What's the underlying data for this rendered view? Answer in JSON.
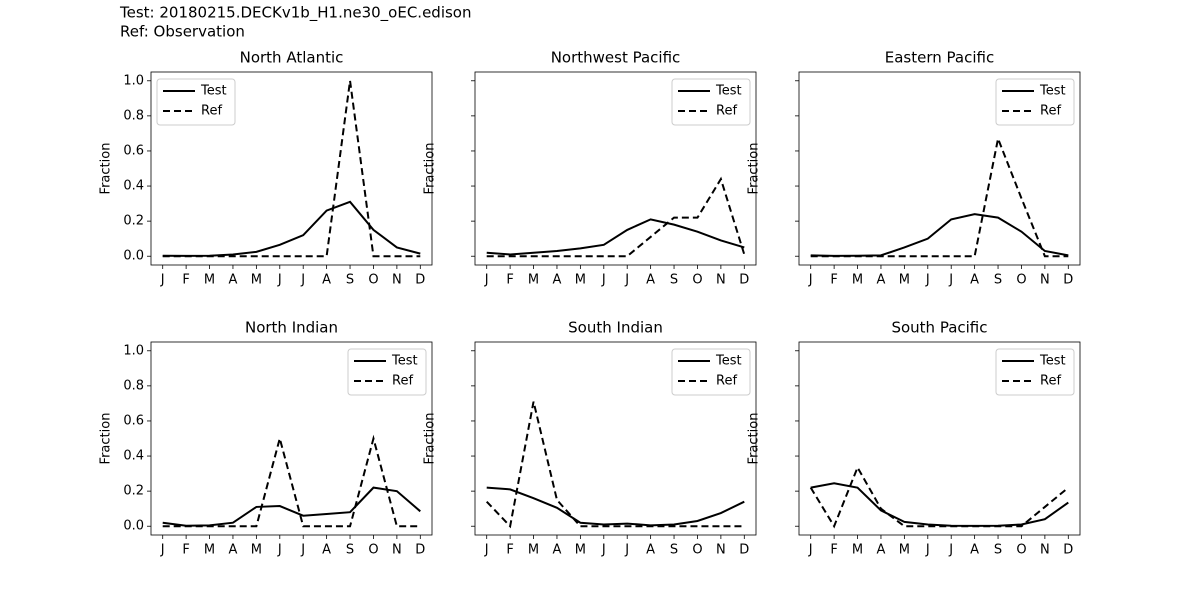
{
  "header": {
    "test": "Test: 20180215.DECKv1b_H1.ne30_oEC.edison",
    "ref": "Ref: Observation"
  },
  "chart_data": [
    {
      "type": "line",
      "title": "North Atlantic",
      "ylabel": "Fraction",
      "legend": "upper left",
      "categories": [
        "J",
        "F",
        "M",
        "A",
        "M",
        "J",
        "J",
        "A",
        "S",
        "O",
        "N",
        "D"
      ],
      "ylim": [
        -0.05,
        1.05
      ],
      "yticks": [
        {
          "value": 0,
          "label": "0.0"
        },
        {
          "value": 0.2,
          "label": "0.2"
        },
        {
          "value": 0.4,
          "label": "0.4"
        },
        {
          "value": 0.6,
          "label": "0.6"
        },
        {
          "value": 0.8,
          "label": "0.8"
        },
        {
          "value": 1,
          "label": "1.0"
        }
      ],
      "series": [
        {
          "name": "Test",
          "color": "#000000",
          "linestyle": "solid",
          "values": [
            0.003,
            0.002,
            0.003,
            0.01,
            0.025,
            0.065,
            0.12,
            0.26,
            0.31,
            0.15,
            0.05,
            0.015
          ]
        },
        {
          "name": "Ref",
          "color": "#000000",
          "linestyle": "dashed",
          "values": [
            0,
            0,
            0,
            0,
            0,
            0,
            0,
            0,
            1.0,
            0,
            0,
            0
          ]
        }
      ]
    },
    {
      "type": "line",
      "title": "Northwest Pacific",
      "ylabel": "Fraction",
      "legend": "upper right",
      "categories": [
        "J",
        "F",
        "M",
        "A",
        "M",
        "J",
        "J",
        "A",
        "S",
        "O",
        "N",
        "D"
      ],
      "ylim": [
        -0.05,
        1.05
      ],
      "yticks": [
        0,
        0.2,
        0.4,
        0.6,
        0.8,
        1
      ],
      "series": [
        {
          "name": "Test",
          "color": "#000000",
          "linestyle": "solid",
          "values": [
            0.02,
            0.01,
            0.02,
            0.03,
            0.045,
            0.065,
            0.15,
            0.21,
            0.18,
            0.14,
            0.09,
            0.05
          ]
        },
        {
          "name": "Ref",
          "color": "#000000",
          "linestyle": "dashed",
          "values": [
            0,
            0,
            0,
            0,
            0,
            0,
            0,
            0.11,
            0.22,
            0.22,
            0.44,
            0.01
          ]
        }
      ]
    },
    {
      "type": "line",
      "title": "Eastern Pacific",
      "ylabel": "Fraction",
      "legend": "upper right",
      "categories": [
        "J",
        "F",
        "M",
        "A",
        "M",
        "J",
        "J",
        "A",
        "S",
        "O",
        "N",
        "D"
      ],
      "ylim": [
        -0.05,
        1.05
      ],
      "yticks": [
        0,
        0.2,
        0.4,
        0.6,
        0.8,
        1
      ],
      "series": [
        {
          "name": "Test",
          "color": "#000000",
          "linestyle": "solid",
          "values": [
            0.005,
            0.002,
            0.003,
            0.005,
            0.05,
            0.1,
            0.21,
            0.24,
            0.22,
            0.14,
            0.03,
            0.005
          ]
        },
        {
          "name": "Ref",
          "color": "#000000",
          "linestyle": "dashed",
          "values": [
            0,
            0,
            0,
            0,
            0,
            0,
            0,
            0,
            0.67,
            0.33,
            0,
            0
          ]
        }
      ]
    },
    {
      "type": "line",
      "title": "North Indian",
      "ylabel": "Fraction",
      "legend": "upper right",
      "categories": [
        "J",
        "F",
        "M",
        "A",
        "M",
        "J",
        "J",
        "A",
        "S",
        "O",
        "N",
        "D"
      ],
      "ylim": [
        -0.05,
        1.05
      ],
      "yticks": [
        {
          "value": 0,
          "label": "0.0"
        },
        {
          "value": 0.2,
          "label": "0.2"
        },
        {
          "value": 0.4,
          "label": "0.4"
        },
        {
          "value": 0.6,
          "label": "0.6"
        },
        {
          "value": 0.8,
          "label": "0.8"
        },
        {
          "value": 1,
          "label": "1.0"
        }
      ],
      "series": [
        {
          "name": "Test",
          "color": "#000000",
          "linestyle": "solid",
          "values": [
            0.02,
            0.003,
            0.005,
            0.02,
            0.11,
            0.115,
            0.06,
            0.07,
            0.08,
            0.22,
            0.2,
            0.085
          ]
        },
        {
          "name": "Ref",
          "color": "#000000",
          "linestyle": "dashed",
          "values": [
            0,
            0,
            0,
            0,
            0,
            0.5,
            0,
            0,
            0,
            0.5,
            0,
            0
          ]
        }
      ]
    },
    {
      "type": "line",
      "title": "South Indian",
      "ylabel": "Fraction",
      "legend": "upper right",
      "categories": [
        "J",
        "F",
        "M",
        "A",
        "M",
        "J",
        "J",
        "A",
        "S",
        "O",
        "N",
        "D"
      ],
      "ylim": [
        -0.05,
        1.05
      ],
      "yticks": [
        0,
        0.2,
        0.4,
        0.6,
        0.8,
        1
      ],
      "series": [
        {
          "name": "Test",
          "color": "#000000",
          "linestyle": "solid",
          "values": [
            0.22,
            0.21,
            0.16,
            0.105,
            0.02,
            0.01,
            0.015,
            0.005,
            0.01,
            0.03,
            0.075,
            0.14
          ]
        },
        {
          "name": "Ref",
          "color": "#000000",
          "linestyle": "dashed",
          "values": [
            0.14,
            0,
            0.71,
            0.15,
            0,
            0,
            0,
            0,
            0,
            0,
            0,
            0
          ]
        }
      ]
    },
    {
      "type": "line",
      "title": "South Pacific",
      "ylabel": "Fraction",
      "legend": "upper right",
      "categories": [
        "J",
        "F",
        "M",
        "A",
        "M",
        "J",
        "J",
        "A",
        "S",
        "O",
        "N",
        "D"
      ],
      "ylim": [
        -0.05,
        1.05
      ],
      "yticks": [
        0,
        0.2,
        0.4,
        0.6,
        0.8,
        1
      ],
      "series": [
        {
          "name": "Test",
          "color": "#000000",
          "linestyle": "solid",
          "values": [
            0.22,
            0.245,
            0.22,
            0.09,
            0.025,
            0.01,
            0.003,
            0.002,
            0.003,
            0.01,
            0.04,
            0.135
          ]
        },
        {
          "name": "Ref",
          "color": "#000000",
          "linestyle": "dashed",
          "values": [
            0.22,
            0,
            0.335,
            0.1,
            0,
            0,
            0,
            0,
            0,
            0,
            0.11,
            0.22
          ]
        }
      ]
    }
  ]
}
